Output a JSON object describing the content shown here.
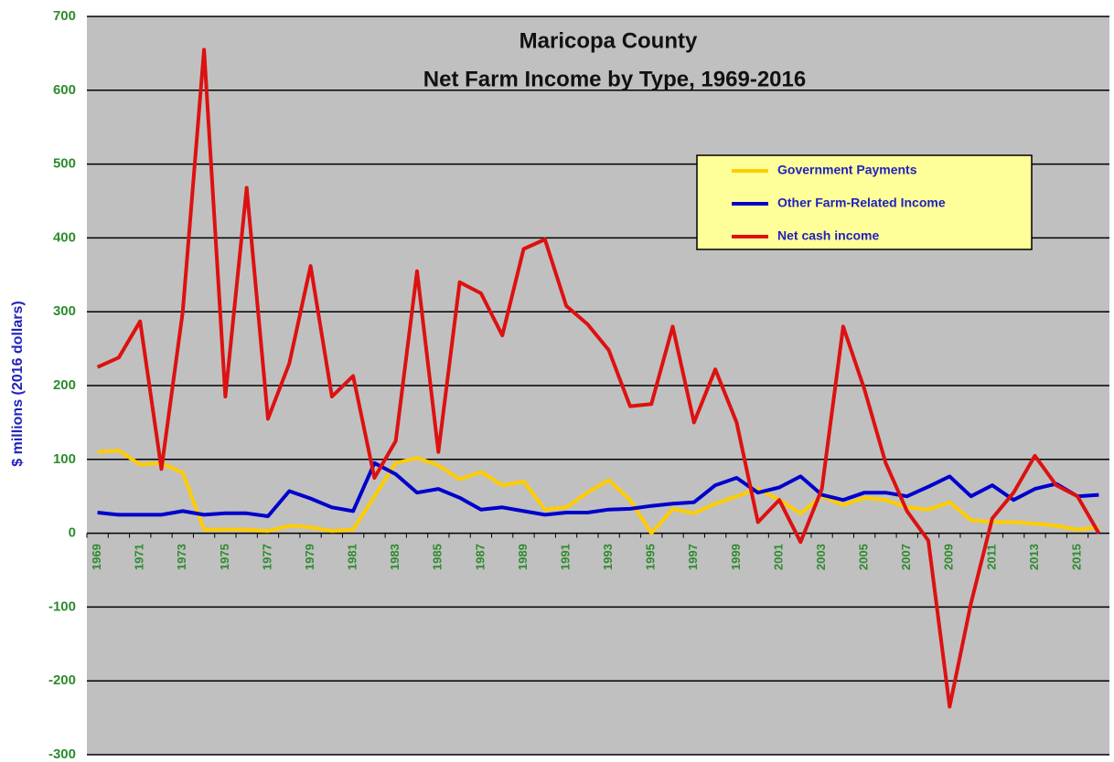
{
  "chart_data": {
    "type": "line",
    "title": "Maricopa County",
    "subtitle": "Net Farm Income by Type, 1969-2016",
    "y_label": "$ millions (2016 dollars)",
    "categories": [
      "1969",
      null,
      "1971",
      null,
      "1973",
      null,
      "1975",
      null,
      "1977",
      null,
      "1979",
      null,
      "1981",
      null,
      "1983",
      null,
      "1985",
      null,
      "1987",
      null,
      "1989",
      null,
      "1991",
      null,
      "1993",
      null,
      "1995",
      null,
      "1997",
      null,
      "1999",
      null,
      "2001",
      null,
      "2003",
      null,
      "2005",
      null,
      "2007",
      null,
      "2009",
      null,
      "2011",
      null,
      "2013",
      null,
      "2015",
      null
    ],
    "series": [
      {
        "name": "Government Payments",
        "color": "#ffcc00",
        "values": [
          110,
          112,
          93,
          95,
          82,
          5,
          5,
          5,
          3,
          10,
          8,
          3,
          5,
          50,
          95,
          102,
          92,
          73,
          83,
          65,
          70,
          32,
          35,
          55,
          72,
          45,
          0,
          33,
          27,
          40,
          50,
          60,
          45,
          27,
          50,
          38,
          48,
          45,
          35,
          32,
          42,
          18,
          15,
          15,
          13,
          10,
          5,
          8
        ]
      },
      {
        "name": "Other Farm-Related Income",
        "color": "#0000cc",
        "values": [
          28,
          25,
          25,
          25,
          30,
          25,
          27,
          27,
          23,
          57,
          47,
          35,
          30,
          95,
          80,
          55,
          60,
          48,
          32,
          35,
          30,
          25,
          28,
          28,
          32,
          33,
          37,
          40,
          42,
          65,
          75,
          55,
          62,
          77,
          52,
          45,
          55,
          55,
          50,
          63,
          77,
          50,
          65,
          45,
          60,
          67,
          50,
          52
        ]
      },
      {
        "name": "Net cash income",
        "color": "#dd1111",
        "values": [
          225,
          238,
          287,
          87,
          300,
          655,
          185,
          468,
          155,
          230,
          362,
          185,
          213,
          75,
          125,
          355,
          110,
          340,
          325,
          268,
          385,
          398,
          308,
          283,
          248,
          172,
          175,
          280,
          150,
          222,
          150,
          15,
          45,
          -12,
          60,
          280,
          195,
          95,
          30,
          -10,
          -235,
          -95,
          20,
          55,
          105,
          65,
          50,
          0
        ]
      }
    ],
    "ylim": [
      -300,
      700
    ],
    "yticks": [
      -300,
      -200,
      -100,
      0,
      100,
      200,
      300,
      400,
      500,
      600,
      700
    ],
    "grid": true
  }
}
